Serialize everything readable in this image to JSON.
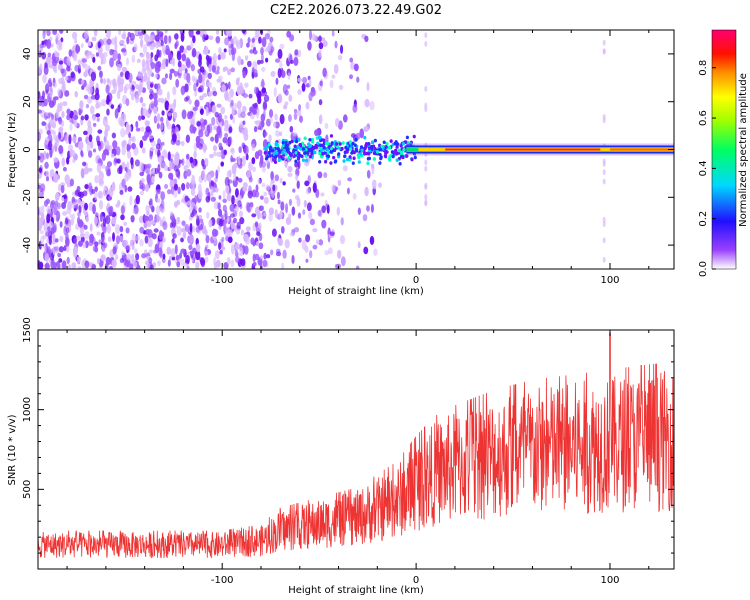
{
  "title": "C2E2.2026.073.22.49.G02",
  "chart_data": [
    {
      "type": "heatmap",
      "title": "C2E2.2026.073.22.49.G02",
      "xlabel": "Height of straight line (km)",
      "ylabel": "Frequency (Hz)",
      "xlim": [
        -195,
        133
      ],
      "ylim": [
        -50,
        50
      ],
      "x_ticks": [
        -100,
        0,
        100
      ],
      "y_ticks": [
        -40,
        -20,
        0,
        20,
        40
      ],
      "x_tick_labels": [
        "-100",
        "0",
        "100"
      ],
      "y_tick_labels": [
        "-40",
        "-20",
        "0",
        "20",
        "40"
      ],
      "grid": false,
      "colorbar": {
        "label": "Normalized spectral amplitude",
        "range": [
          0,
          0.95
        ],
        "ticks": [
          0,
          0.2,
          0.4,
          0.6,
          0.8
        ],
        "tick_labels": [
          "0.0",
          "0.2",
          "0.4",
          "0.6",
          "0.8"
        ],
        "colormap": "rainbow"
      },
      "features": {
        "noise_region_x": [
          -195,
          -78
        ],
        "signal_onset_x": -78,
        "strong_line_x": [
          -5,
          133
        ],
        "line_frequency_hz": 0,
        "vertical_artifacts_x": [
          5,
          97
        ]
      }
    },
    {
      "type": "line",
      "xlabel": "Height of straight line (km)",
      "ylabel": "SNR (10 * v/v)",
      "xlim": [
        -195,
        133
      ],
      "ylim": [
        0,
        1500
      ],
      "x_ticks": [
        -100,
        0,
        100
      ],
      "y_ticks": [
        500,
        1000,
        1500
      ],
      "x_tick_labels": [
        "-100",
        "0",
        "100"
      ],
      "y_tick_labels": [
        "500",
        "1000",
        "1500"
      ],
      "grid": false,
      "series": [
        {
          "color": "#ee3333",
          "x": [
            -195,
            -150,
            -100,
            -80,
            -70,
            -50,
            -30,
            -10,
            0,
            10,
            20,
            40,
            60,
            80,
            100,
            120,
            133
          ],
          "values": [
            150,
            150,
            150,
            175,
            240,
            280,
            320,
            420,
            520,
            600,
            640,
            700,
            740,
            760,
            780,
            800,
            810
          ]
        }
      ]
    }
  ]
}
